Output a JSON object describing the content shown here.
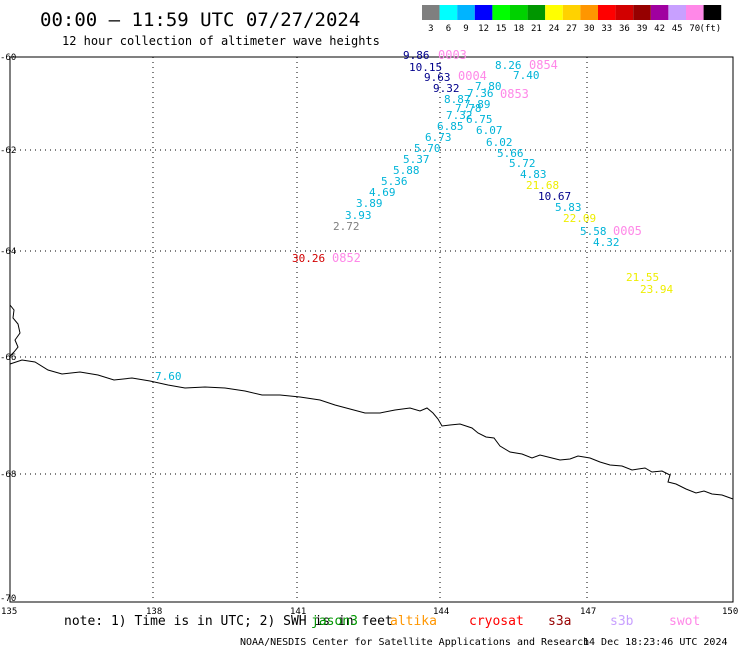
{
  "header": {
    "title": "00:00 – 11:59 UTC 07/27/2024",
    "subtitle": "12 hour collection of altimeter wave heights"
  },
  "legend": {
    "ticks": [
      "3",
      "6",
      "9",
      "12",
      "15",
      "18",
      "21",
      "24",
      "27",
      "30",
      "33",
      "36",
      "39",
      "42",
      "45",
      "70",
      "(ft)"
    ],
    "colors": [
      "#7f7f7f",
      "#00ffff",
      "#00b4ff",
      "#0000ff",
      "#00ff00",
      "#00d200",
      "#009600",
      "#ffff00",
      "#ffd200",
      "#ff9600",
      "#ff0000",
      "#d20000",
      "#960000",
      "#a000a0",
      "#c8a0ff",
      "#ff88e8",
      "#000000"
    ]
  },
  "axes": {
    "lat_labels": [
      "-60",
      "-62",
      "-64",
      "-66",
      "-68",
      "-70"
    ],
    "lon_labels": [
      "135",
      "138",
      "141",
      "144",
      "147",
      "150"
    ]
  },
  "observations": [
    {
      "text": "9.86",
      "color": "#00008b"
    },
    {
      "text": "0003",
      "color": "#ff88e8"
    },
    {
      "text": "10.15",
      "color": "#00008b"
    },
    {
      "text": "9.63",
      "color": "#00008b"
    },
    {
      "text": "0004",
      "color": "#ff88e8"
    },
    {
      "text": "8.26",
      "color": "#00b4d8"
    },
    {
      "text": "0854",
      "color": "#ff88e8"
    },
    {
      "text": "7.40",
      "color": "#00b4d8"
    },
    {
      "text": "9.32",
      "color": "#00008b"
    },
    {
      "text": "7.80",
      "color": "#00b4d8"
    },
    {
      "text": "0853",
      "color": "#ff88e8"
    },
    {
      "text": "8.87",
      "color": "#00b4d8"
    },
    {
      "text": "7.36",
      "color": "#00b4d8"
    },
    {
      "text": "7.89",
      "color": "#00b4d8"
    },
    {
      "text": "7.78",
      "color": "#00b4d8"
    },
    {
      "text": "7.32",
      "color": "#00b4d8"
    },
    {
      "text": "6.75",
      "color": "#00b4d8"
    },
    {
      "text": "6.85",
      "color": "#00b4d8"
    },
    {
      "text": "6.07",
      "color": "#00b4d8"
    },
    {
      "text": "6.73",
      "color": "#00b4d8"
    },
    {
      "text": "6.02",
      "color": "#00b4d8"
    },
    {
      "text": "5.70",
      "color": "#00b4d8"
    },
    {
      "text": "5.66",
      "color": "#00b4d8"
    },
    {
      "text": "5.37",
      "color": "#00b4d8"
    },
    {
      "text": "5.72",
      "color": "#00b4d8"
    },
    {
      "text": "5.88",
      "color": "#00b4d8"
    },
    {
      "text": "4.83",
      "color": "#00b4d8"
    },
    {
      "text": "5.36",
      "color": "#00b4d8"
    },
    {
      "text": "21.68",
      "color": "#eeee00"
    },
    {
      "text": "4.69",
      "color": "#00b4d8"
    },
    {
      "text": "10.67",
      "color": "#00008b"
    },
    {
      "text": "3.89",
      "color": "#00b4d8"
    },
    {
      "text": "5.83",
      "color": "#00b4d8"
    },
    {
      "text": "3.93",
      "color": "#00b4d8"
    },
    {
      "text": "22.09",
      "color": "#eeee00"
    },
    {
      "text": "2.72",
      "color": "#7f7f7f"
    },
    {
      "text": "5.58",
      "color": "#00b4d8"
    },
    {
      "text": "0005",
      "color": "#ff88e8"
    },
    {
      "text": "4.32",
      "color": "#00b4d8"
    },
    {
      "text": "30.26",
      "color": "#d20000"
    },
    {
      "text": "0852",
      "color": "#ff88e8"
    },
    {
      "text": "21.55",
      "color": "#eeee00"
    },
    {
      "text": "23.94",
      "color": "#eeee00"
    },
    {
      "text": "7.60",
      "color": "#00b4d8"
    }
  ],
  "footer": {
    "note": "note: 1) Time is in UTC; 2) SWH is in feet",
    "satellites": [
      {
        "name": "jason3",
        "color": "#009600"
      },
      {
        "name": "altika",
        "color": "#ff9600"
      },
      {
        "name": "cryosat",
        "color": "#ff0000"
      },
      {
        "name": "s3a",
        "color": "#960000"
      },
      {
        "name": "s3b",
        "color": "#c8a0ff"
      },
      {
        "name": "swot",
        "color": "#ff88e8"
      }
    ],
    "credit": "NOAA/NESDIS Center for Satellite Applications and Research",
    "generated": "14 Dec 18:23:46 UTC 2024"
  }
}
